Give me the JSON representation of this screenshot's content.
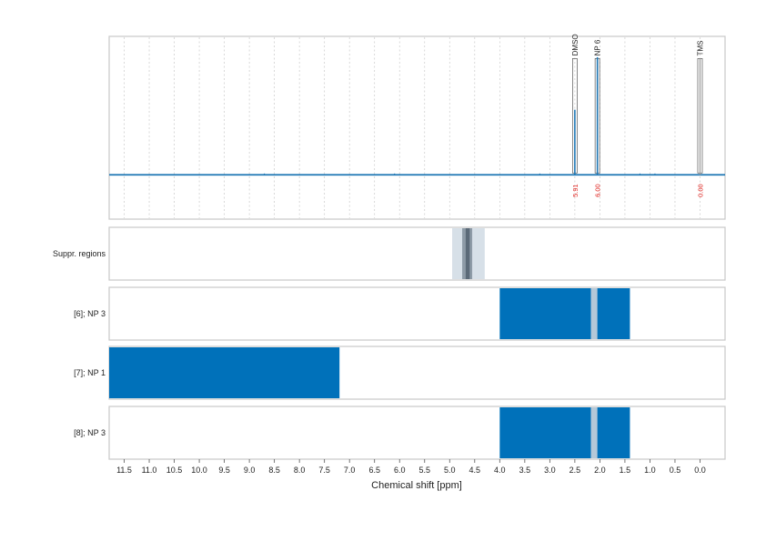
{
  "chart_data": {
    "type": "nmr_spectrum_with_region_bands",
    "xlabel": "Chemical shift [ppm]",
    "xlim": [
      11.8,
      -0.5
    ],
    "x_reversed": true,
    "x_ticks": [
      11.5,
      11.0,
      10.5,
      10.0,
      9.5,
      9.0,
      8.5,
      8.0,
      7.5,
      7.0,
      6.5,
      6.0,
      5.5,
      5.0,
      4.5,
      4.0,
      3.5,
      3.0,
      2.5,
      2.0,
      1.5,
      1.0,
      0.5,
      0.0
    ],
    "x_tick_labels": [
      "11.5",
      "11.0",
      "10.5",
      "10.0",
      "9.5",
      "9.0",
      "8.5",
      "8.0",
      "7.5",
      "7.0",
      "6.5",
      "6.0",
      "5.5",
      "5.0",
      "4.5",
      "4.0",
      "3.5",
      "3.0",
      "2.5",
      "2.0",
      "1.5",
      "1.0",
      "0.5",
      "0.0"
    ],
    "grid": true,
    "spectrum": {
      "color": "#1f77b4",
      "baseline": 0,
      "ylim": [
        -0.32,
        1.0
      ],
      "peaks": [
        {
          "name": "DMSO",
          "ppm": 2.5,
          "height": 0.47,
          "label": "DMSO",
          "integral": "5.91"
        },
        {
          "name": "NP 6",
          "ppm": 2.05,
          "height": 0.85,
          "label": "NP 6",
          "integral": "6.00"
        },
        {
          "name": "TMS",
          "ppm": 0.0,
          "height": 0.0,
          "label": "TMS",
          "integral": "0.00"
        }
      ]
    },
    "suppressed_regions": {
      "label": "Suppr. regions",
      "bands": [
        {
          "from": 4.95,
          "to": 4.3,
          "shade": "light"
        },
        {
          "from": 4.75,
          "to": 4.55,
          "shade": "mid"
        },
        {
          "from": 4.68,
          "to": 4.6,
          "shade": "dark"
        }
      ]
    },
    "region_rows": [
      {
        "label": "[6]; NP 3",
        "regions": [
          [
            4.0,
            1.4
          ]
        ],
        "gap": [
          2.18,
          2.05
        ]
      },
      {
        "label": "[7]; NP 1",
        "regions": [
          [
            11.8,
            7.2
          ]
        ],
        "gap": null
      },
      {
        "label": "[8]; NP 3",
        "regions": [
          [
            4.0,
            1.4
          ]
        ],
        "gap": [
          2.18,
          2.05
        ]
      }
    ],
    "colors": {
      "region_fill": "#0071ba",
      "gap_fill": "#b4c8d8",
      "suppr_light": "#d7e0e8",
      "suppr_mid": "#8e9ba7",
      "suppr_dark": "#5b6a78",
      "integral_text": "#e0201b",
      "tms_line": "#9a9a9a"
    }
  }
}
